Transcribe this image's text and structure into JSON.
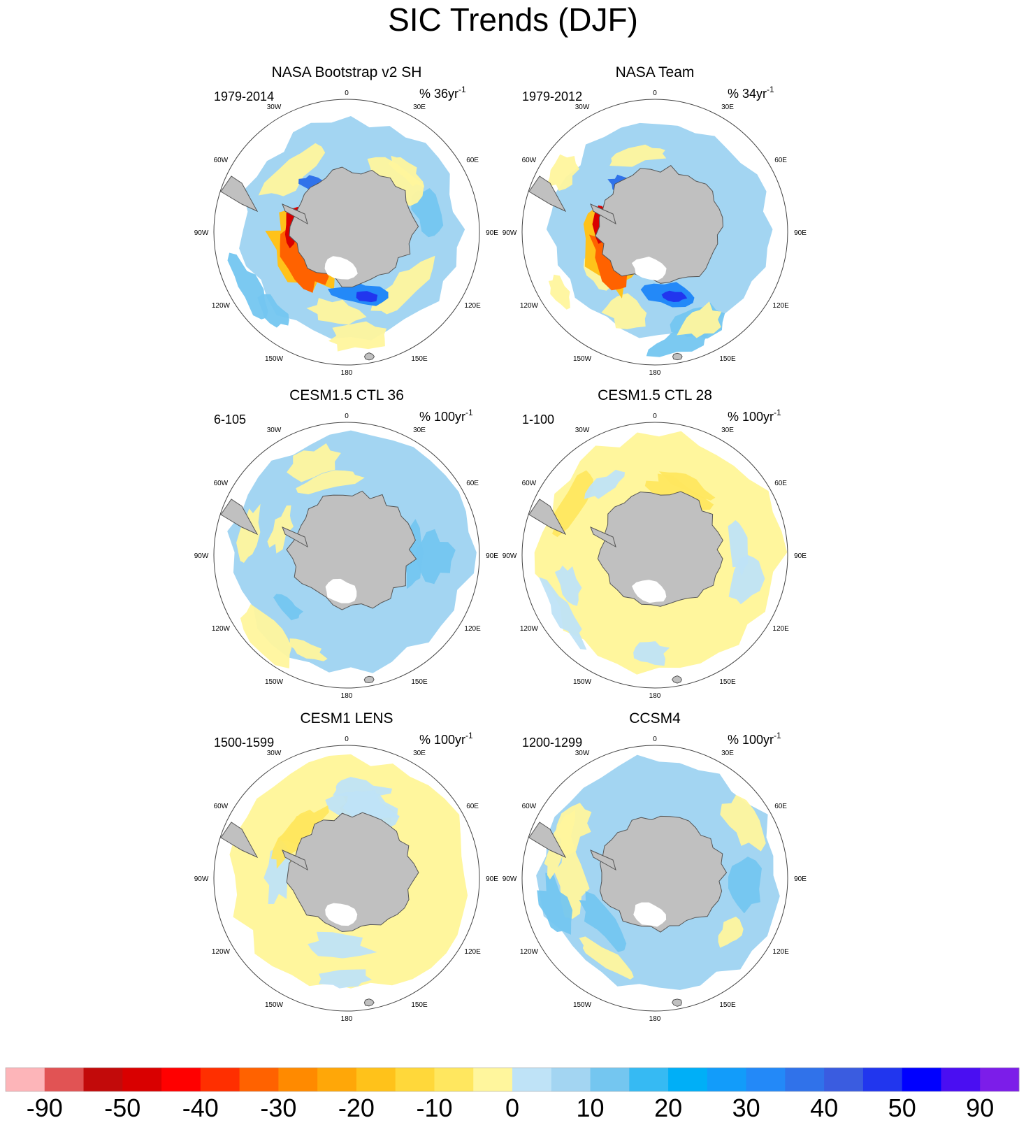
{
  "chart_data": {
    "type": "heatmap",
    "title": "SIC Trends (DJF)",
    "projection": "south-polar-stereographic",
    "longitude_labels": [
      "0",
      "30E",
      "60E",
      "90E",
      "120E",
      "150E",
      "180",
      "150W",
      "120W",
      "90W",
      "60W",
      "30W"
    ],
    "panels": [
      {
        "title": "NASA Bootstrap v2 SH",
        "period": "1979-2014",
        "units_prefix": "% 36yr",
        "units_exponent": "-1",
        "dominant": "mixed-strong",
        "extent": 0.83
      },
      {
        "title": "NASA Team",
        "period": "1979-2012",
        "units_prefix": "% 34yr",
        "units_exponent": "-1",
        "dominant": "mixed-strong",
        "extent": 0.82
      },
      {
        "title": "CESM1.5 CTL 36",
        "period": "6-105",
        "units_prefix": "% 100yr",
        "units_exponent": "-1",
        "dominant": "mostly-positive",
        "extent": 0.9
      },
      {
        "title": "CESM1.5 CTL 28",
        "period": "1-100",
        "units_prefix": "% 100yr",
        "units_exponent": "-1",
        "dominant": "mostly-negative",
        "extent": 0.91
      },
      {
        "title": "CESM1 LENS",
        "period": "1500-1599",
        "units_prefix": "% 100yr",
        "units_exponent": "-1",
        "dominant": "mostly-negative",
        "extent": 0.9
      },
      {
        "title": "CCSM4",
        "period": "1200-1299",
        "units_prefix": "% 100yr",
        "units_exponent": "-1",
        "dominant": "mostly-positive",
        "extent": 0.9
      }
    ],
    "colorbar": {
      "colors": [
        "#fdb5b9",
        "#e15354",
        "#c20a0a",
        "#d90000",
        "#ff0000",
        "#ff2f00",
        "#ff6200",
        "#ff8a00",
        "#ffa708",
        "#ffc21a",
        "#ffd83a",
        "#ffe75f",
        "#fff69d",
        "#bfe3f7",
        "#a3d5f2",
        "#74c6f0",
        "#36baf3",
        "#00aff7",
        "#129cfa",
        "#2389f8",
        "#3072ea",
        "#3a5ce0",
        "#2136ee",
        "#0000ff",
        "#4a0ef2",
        "#7c1de9"
      ],
      "tick_labels": [
        "-90",
        "-50",
        "-40",
        "-30",
        "-20",
        "-10",
        "0",
        "10",
        "20",
        "30",
        "40",
        "50",
        "90"
      ]
    },
    "land_color": "#c0c0c0"
  }
}
